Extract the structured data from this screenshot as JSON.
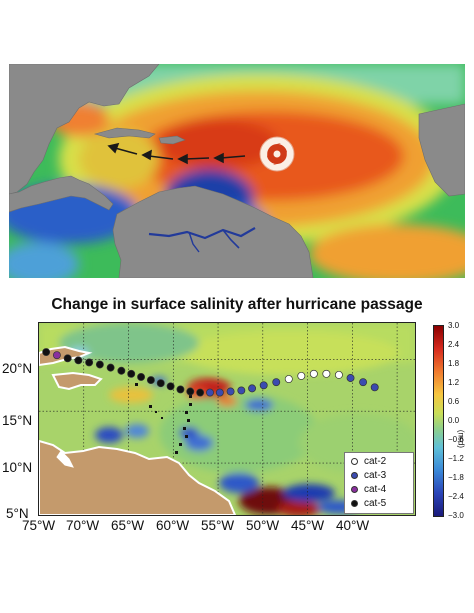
{
  "title": "Change in surface salinity after hurricane passage",
  "map": {
    "lat_ticks": [
      "20°N",
      "15°N",
      "10°N",
      "5°N"
    ],
    "lon_ticks": [
      "75°W",
      "70°W",
      "65°W",
      "60°W",
      "55°W",
      "50°W",
      "45°W",
      "40°W"
    ],
    "lon_range": [
      -75,
      -33
    ],
    "lat_range": [
      5,
      23.5
    ]
  },
  "colorbar": {
    "unit": "(psu)",
    "ticks": [
      "3.0",
      "2.4",
      "1.8",
      "1.2",
      "0.6",
      "0.0",
      "−0.6",
      "−1.2",
      "−1.8",
      "−2.4",
      "−3.0"
    ],
    "range": [
      -3.0,
      3.0
    ]
  },
  "legend": [
    {
      "label": "cat-2",
      "color": "#ffffff"
    },
    {
      "label": "cat-3",
      "color": "#3b4bb0"
    },
    {
      "label": "cat-4",
      "color": "#8a2f9e"
    },
    {
      "label": "cat-5",
      "color": "#111111"
    }
  ],
  "track": [
    {
      "lon": -37.5,
      "lat": 17.3,
      "cat": "cat-3"
    },
    {
      "lon": -38.8,
      "lat": 17.8,
      "cat": "cat-3"
    },
    {
      "lon": -40.2,
      "lat": 18.2,
      "cat": "cat-3"
    },
    {
      "lon": -41.5,
      "lat": 18.5,
      "cat": "cat-2"
    },
    {
      "lon": -42.9,
      "lat": 18.6,
      "cat": "cat-2"
    },
    {
      "lon": -44.3,
      "lat": 18.6,
      "cat": "cat-2"
    },
    {
      "lon": -45.7,
      "lat": 18.4,
      "cat": "cat-2"
    },
    {
      "lon": -47.1,
      "lat": 18.1,
      "cat": "cat-2"
    },
    {
      "lon": -48.5,
      "lat": 17.8,
      "cat": "cat-3"
    },
    {
      "lon": -49.9,
      "lat": 17.5,
      "cat": "cat-3"
    },
    {
      "lon": -51.2,
      "lat": 17.2,
      "cat": "cat-3"
    },
    {
      "lon": -52.4,
      "lat": 17.0,
      "cat": "cat-3"
    },
    {
      "lon": -53.6,
      "lat": 16.9,
      "cat": "cat-3"
    },
    {
      "lon": -54.8,
      "lat": 16.8,
      "cat": "cat-3"
    },
    {
      "lon": -55.9,
      "lat": 16.8,
      "cat": "cat-3"
    },
    {
      "lon": -57.0,
      "lat": 16.8,
      "cat": "cat-5"
    },
    {
      "lon": -58.1,
      "lat": 16.9,
      "cat": "cat-5"
    },
    {
      "lon": -59.2,
      "lat": 17.1,
      "cat": "cat-5"
    },
    {
      "lon": -60.3,
      "lat": 17.4,
      "cat": "cat-5"
    },
    {
      "lon": -61.4,
      "lat": 17.7,
      "cat": "cat-5"
    },
    {
      "lon": -62.5,
      "lat": 18.0,
      "cat": "cat-5"
    },
    {
      "lon": -63.6,
      "lat": 18.3,
      "cat": "cat-5"
    },
    {
      "lon": -64.7,
      "lat": 18.6,
      "cat": "cat-5"
    },
    {
      "lon": -65.8,
      "lat": 18.9,
      "cat": "cat-5"
    },
    {
      "lon": -67.0,
      "lat": 19.2,
      "cat": "cat-5"
    },
    {
      "lon": -68.2,
      "lat": 19.5,
      "cat": "cat-5"
    },
    {
      "lon": -69.4,
      "lat": 19.7,
      "cat": "cat-5"
    },
    {
      "lon": -70.6,
      "lat": 19.9,
      "cat": "cat-5"
    },
    {
      "lon": -71.8,
      "lat": 20.1,
      "cat": "cat-5"
    },
    {
      "lon": -73.0,
      "lat": 20.4,
      "cat": "cat-4"
    },
    {
      "lon": -74.2,
      "lat": 20.7,
      "cat": "cat-5"
    }
  ]
}
